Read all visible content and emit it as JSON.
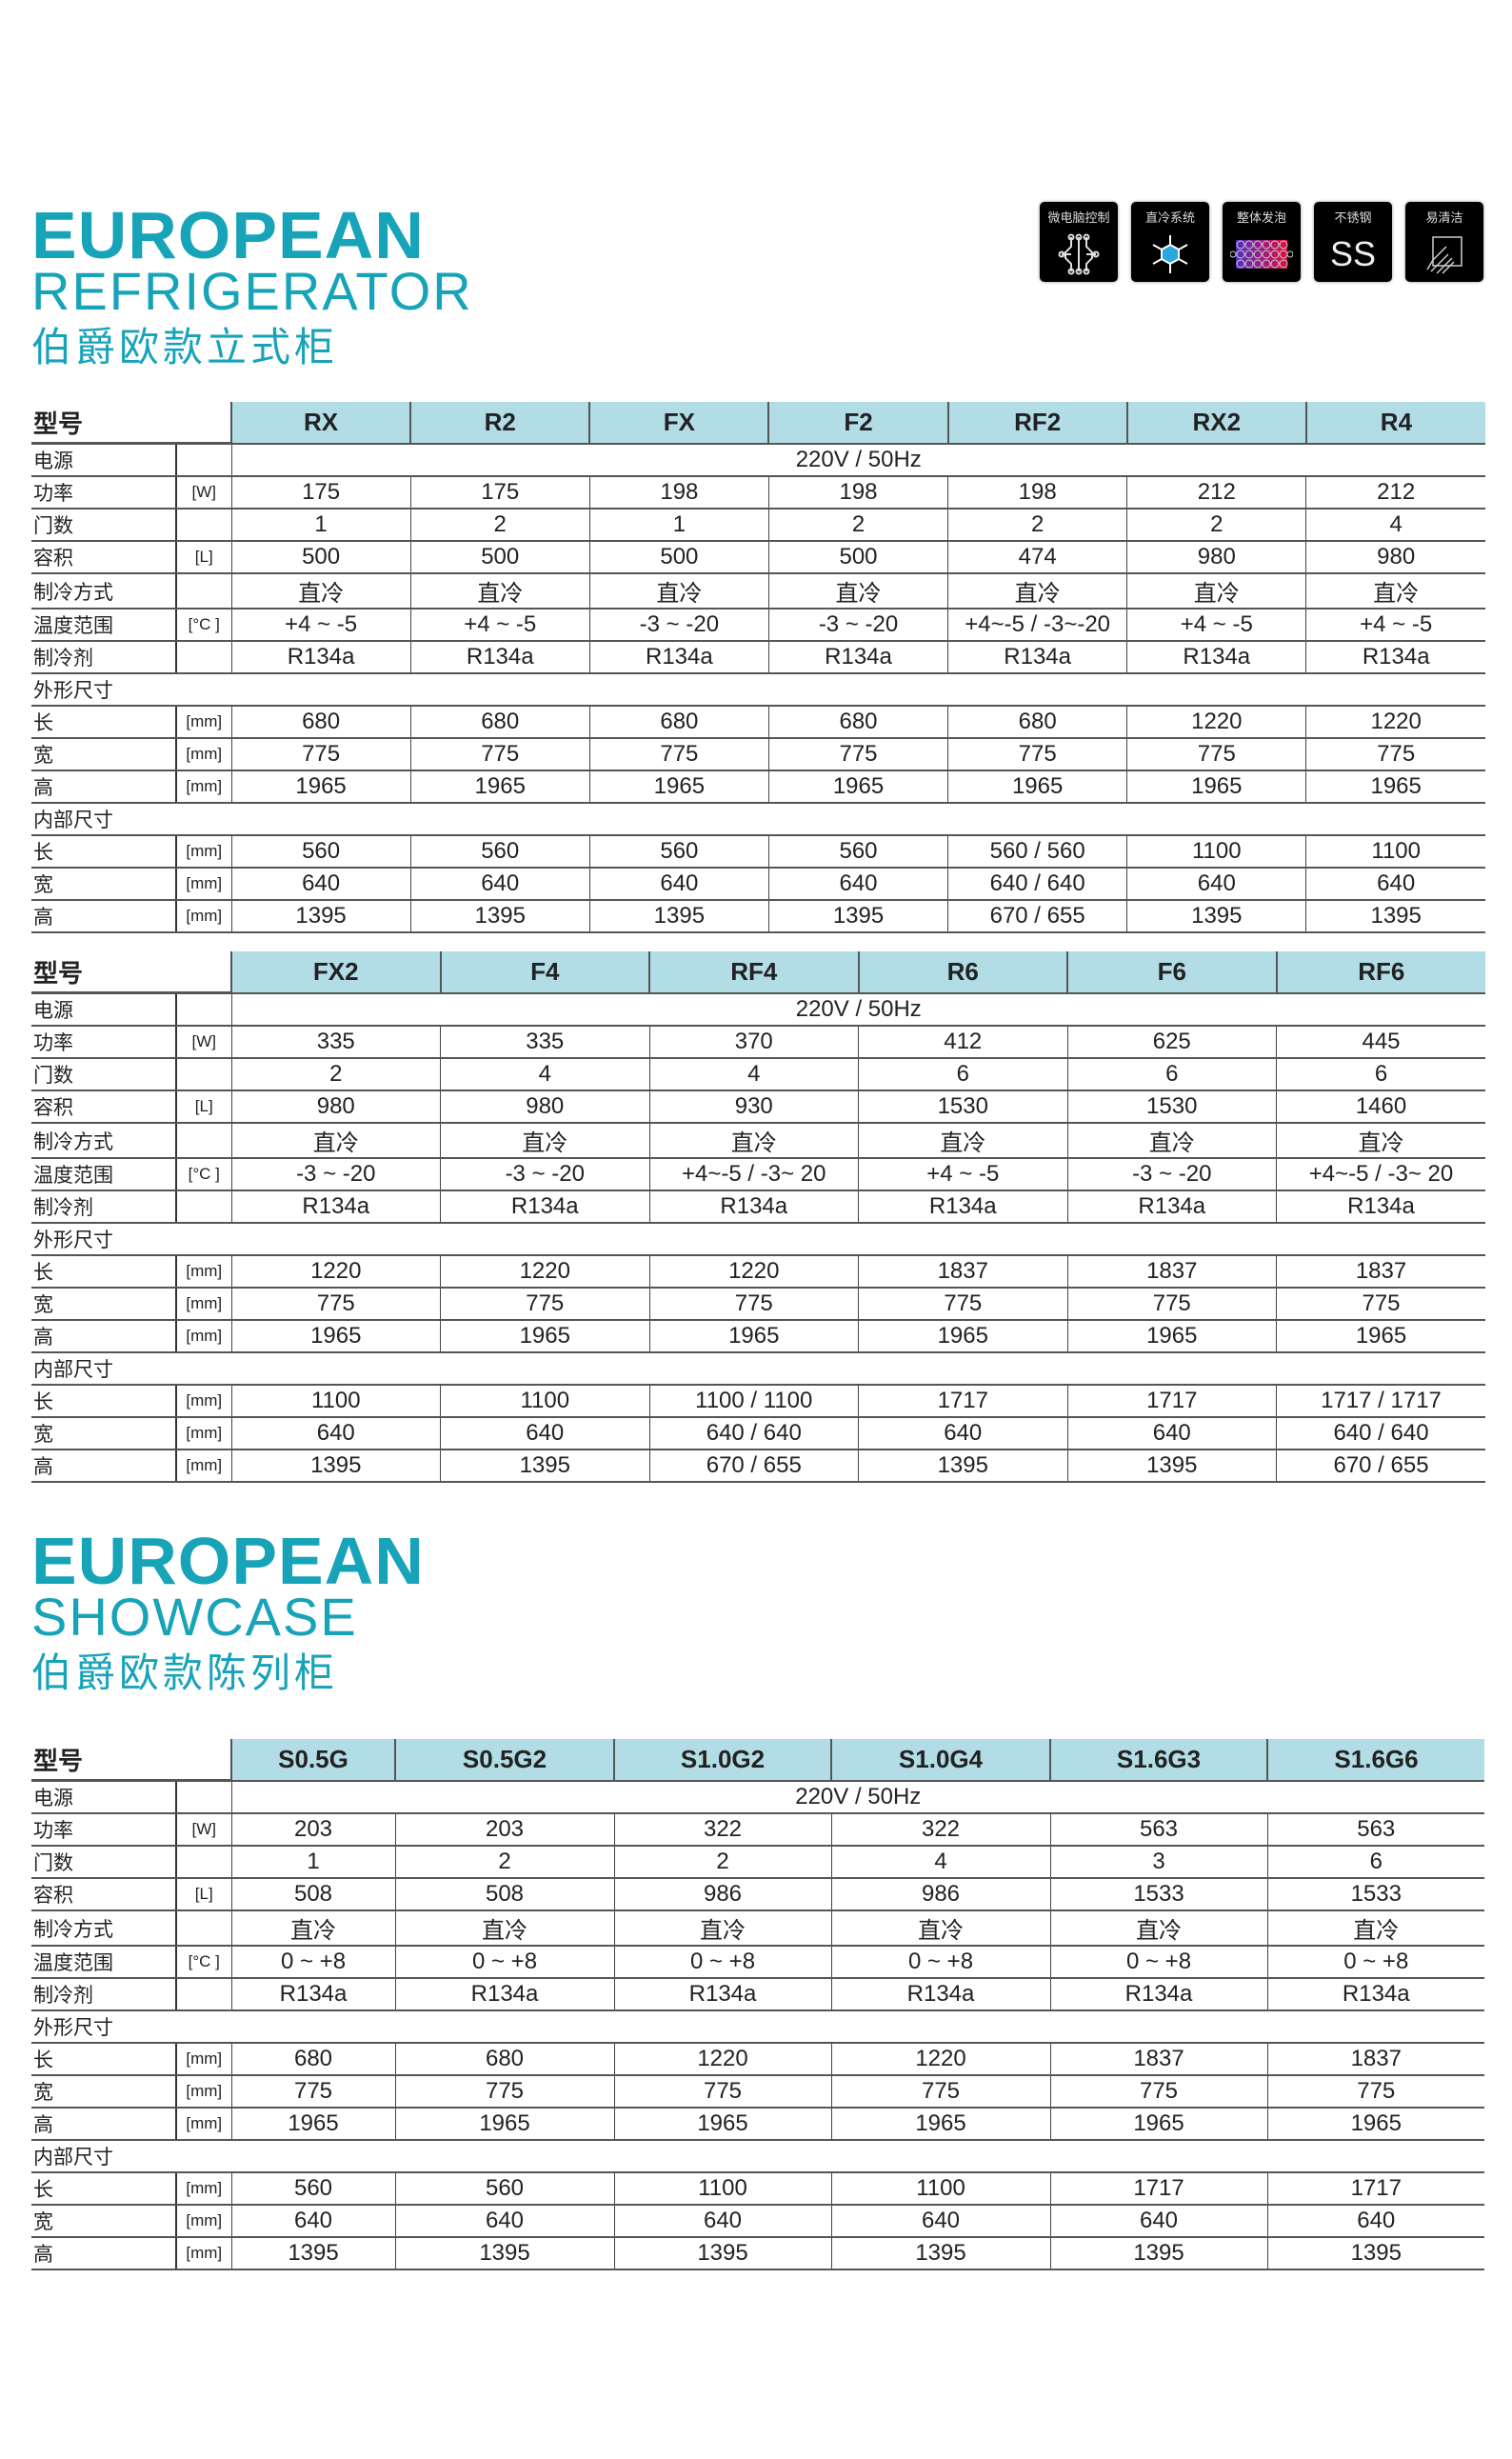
{
  "section1": {
    "title_en1": "EUROPEAN",
    "title_en2": "REFRIGERATOR",
    "title_cn": "伯爵欧款立式柜"
  },
  "section2": {
    "title_en1": "EUROPEAN",
    "title_en2": "SHOWCASE",
    "title_cn": "伯爵欧款陈列柜"
  },
  "features": [
    {
      "label": "微电脑控制",
      "icon": "circuit-icon"
    },
    {
      "label": "直冷系统",
      "icon": "snowflake-icon"
    },
    {
      "label": "整体发泡",
      "icon": "foam-icon"
    },
    {
      "label": "不锈钢",
      "icon": "stainless-steel-icon",
      "glyph": "SS"
    },
    {
      "label": "易清洁",
      "icon": "hand-wipe-icon"
    }
  ],
  "colors": {
    "accent": "#17a3b8",
    "header_bg": "#b2dde6"
  },
  "tables": [
    {
      "model_label": "型号",
      "models": [
        "RX",
        "R2",
        "FX",
        "F2",
        "RF2",
        "RX2",
        "R4"
      ],
      "rows": [
        {
          "label": "电源",
          "unit": "",
          "span": "220V / 50Hz"
        },
        {
          "label": "功率",
          "unit": "[W]",
          "values": [
            "175",
            "175",
            "198",
            "198",
            "198",
            "212",
            "212"
          ]
        },
        {
          "label": "门数",
          "unit": "",
          "values": [
            "1",
            "2",
            "1",
            "2",
            "2",
            "2",
            "4"
          ]
        },
        {
          "label": "容积",
          "unit": "[L]",
          "values": [
            "500",
            "500",
            "500",
            "500",
            "474",
            "980",
            "980"
          ]
        },
        {
          "label": "制冷方式",
          "unit": "",
          "values": [
            "直冷",
            "直冷",
            "直冷",
            "直冷",
            "直冷",
            "直冷",
            "直冷"
          ]
        },
        {
          "label": "温度范围",
          "unit": "[°C ]",
          "values": [
            "+4 ~ -5",
            "+4 ~ -5",
            "-3 ~ -20",
            "-3 ~ -20",
            "+4~-5 / -3~-20",
            "+4 ~ -5",
            "+4 ~ -5"
          ]
        },
        {
          "label": "制冷剂",
          "unit": "",
          "values": [
            "R134a",
            "R134a",
            "R134a",
            "R134a",
            "R134a",
            "R134a",
            "R134a"
          ]
        },
        {
          "label": "外形尺寸",
          "group": true
        },
        {
          "label": "长",
          "unit": "[mm]",
          "values": [
            "680",
            "680",
            "680",
            "680",
            "680",
            "1220",
            "1220"
          ]
        },
        {
          "label": "宽",
          "unit": "[mm]",
          "values": [
            "775",
            "775",
            "775",
            "775",
            "775",
            "775",
            "775"
          ]
        },
        {
          "label": "高",
          "unit": "[mm]",
          "values": [
            "1965",
            "1965",
            "1965",
            "1965",
            "1965",
            "1965",
            "1965"
          ]
        },
        {
          "label": "内部尺寸",
          "group": true
        },
        {
          "label": "长",
          "unit": "[mm]",
          "values": [
            "560",
            "560",
            "560",
            "560",
            "560 / 560",
            "1100",
            "1100"
          ]
        },
        {
          "label": "宽",
          "unit": "[mm]",
          "values": [
            "640",
            "640",
            "640",
            "640",
            "640 / 640",
            "640",
            "640"
          ]
        },
        {
          "label": "高",
          "unit": "[mm]",
          "values": [
            "1395",
            "1395",
            "1395",
            "1395",
            "670 / 655",
            "1395",
            "1395"
          ]
        }
      ]
    },
    {
      "model_label": "型号",
      "models": [
        "FX2",
        "F4",
        "RF4",
        "R6",
        "F6",
        "RF6"
      ],
      "rows": [
        {
          "label": "电源",
          "unit": "",
          "span": "220V / 50Hz"
        },
        {
          "label": "功率",
          "unit": "[W]",
          "values": [
            "335",
            "335",
            "370",
            "412",
            "625",
            "445"
          ]
        },
        {
          "label": "门数",
          "unit": "",
          "values": [
            "2",
            "4",
            "4",
            "6",
            "6",
            "6"
          ]
        },
        {
          "label": "容积",
          "unit": "[L]",
          "values": [
            "980",
            "980",
            "930",
            "1530",
            "1530",
            "1460"
          ]
        },
        {
          "label": "制冷方式",
          "unit": "",
          "values": [
            "直冷",
            "直冷",
            "直冷",
            "直冷",
            "直冷",
            "直冷"
          ]
        },
        {
          "label": "温度范围",
          "unit": "[°C ]",
          "values": [
            "-3 ~ -20",
            "-3 ~ -20",
            "+4~-5 / -3~ 20",
            "+4 ~ -5",
            "-3 ~ -20",
            "+4~-5 / -3~ 20"
          ]
        },
        {
          "label": "制冷剂",
          "unit": "",
          "values": [
            "R134a",
            "R134a",
            "R134a",
            "R134a",
            "R134a",
            "R134a"
          ]
        },
        {
          "label": "外形尺寸",
          "group": true
        },
        {
          "label": "长",
          "unit": "[mm]",
          "values": [
            "1220",
            "1220",
            "1220",
            "1837",
            "1837",
            "1837"
          ]
        },
        {
          "label": "宽",
          "unit": "[mm]",
          "values": [
            "775",
            "775",
            "775",
            "775",
            "775",
            "775"
          ]
        },
        {
          "label": "高",
          "unit": "[mm]",
          "values": [
            "1965",
            "1965",
            "1965",
            "1965",
            "1965",
            "1965"
          ]
        },
        {
          "label": "内部尺寸",
          "group": true
        },
        {
          "label": "长",
          "unit": "[mm]",
          "values": [
            "1100",
            "1100",
            "1100 / 1100",
            "1717",
            "1717",
            "1717 / 1717"
          ]
        },
        {
          "label": "宽",
          "unit": "[mm]",
          "values": [
            "640",
            "640",
            "640 / 640",
            "640",
            "640",
            "640 / 640"
          ]
        },
        {
          "label": "高",
          "unit": "[mm]",
          "values": [
            "1395",
            "1395",
            "670 / 655",
            "1395",
            "1395",
            "670 / 655"
          ]
        }
      ]
    },
    {
      "model_label": "型号",
      "models": [
        "S0.5G",
        "S0.5G2",
        "S1.0G2",
        "S1.0G4",
        "S1.6G3",
        "S1.6G6"
      ],
      "rows": [
        {
          "label": "电源",
          "unit": "",
          "span": "220V / 50Hz"
        },
        {
          "label": "功率",
          "unit": "[W]",
          "values": [
            "203",
            "203",
            "322",
            "322",
            "563",
            "563"
          ]
        },
        {
          "label": "门数",
          "unit": "",
          "values": [
            "1",
            "2",
            "2",
            "4",
            "3",
            "6"
          ]
        },
        {
          "label": "容积",
          "unit": "[L]",
          "values": [
            "508",
            "508",
            "986",
            "986",
            "1533",
            "1533"
          ]
        },
        {
          "label": "制冷方式",
          "unit": "",
          "values": [
            "直冷",
            "直冷",
            "直冷",
            "直冷",
            "直冷",
            "直冷"
          ]
        },
        {
          "label": "温度范围",
          "unit": "[°C ]",
          "values": [
            "0 ~ +8",
            "0 ~ +8",
            "0 ~ +8",
            "0 ~ +8",
            "0 ~ +8",
            "0 ~ +8"
          ]
        },
        {
          "label": "制冷剂",
          "unit": "",
          "values": [
            "R134a",
            "R134a",
            "R134a",
            "R134a",
            "R134a",
            "R134a"
          ]
        },
        {
          "label": "外形尺寸",
          "group": true
        },
        {
          "label": "长",
          "unit": "[mm]",
          "values": [
            "680",
            "680",
            "1220",
            "1220",
            "1837",
            "1837"
          ]
        },
        {
          "label": "宽",
          "unit": "[mm]",
          "values": [
            "775",
            "775",
            "775",
            "775",
            "775",
            "775"
          ]
        },
        {
          "label": "高",
          "unit": "[mm]",
          "values": [
            "1965",
            "1965",
            "1965",
            "1965",
            "1965",
            "1965"
          ]
        },
        {
          "label": "内部尺寸",
          "group": true
        },
        {
          "label": "长",
          "unit": "[mm]",
          "values": [
            "560",
            "560",
            "1100",
            "1100",
            "1717",
            "1717"
          ]
        },
        {
          "label": "宽",
          "unit": "[mm]",
          "values": [
            "640",
            "640",
            "640",
            "640",
            "640",
            "640"
          ]
        },
        {
          "label": "高",
          "unit": "[mm]",
          "values": [
            "1395",
            "1395",
            "1395",
            "1395",
            "1395",
            "1395"
          ]
        }
      ]
    }
  ]
}
